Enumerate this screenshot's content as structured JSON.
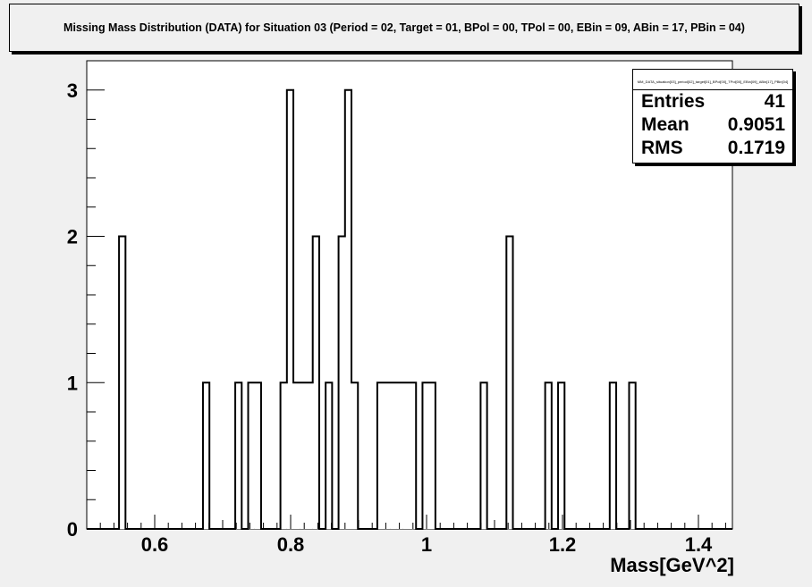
{
  "title": "Missing Mass Distribution (DATA) for Situation 03 (Period = 02, Target = 01, BPol = 00, TPol = 00, EBin = 09, ABin = 17, PBin = 04)",
  "stats": {
    "name": "MM_DATA_situation[03]_period[02]_target[01]_BPol[00]_TPol[00]_EBin[09]_ABin[17]_PBin[04]",
    "entries_label": "Entries",
    "entries": "41",
    "mean_label": "Mean",
    "mean": "0.9051",
    "rms_label": "RMS",
    "rms": "0.1719"
  },
  "chart_data": {
    "type": "bar",
    "histogram": true,
    "title": "Missing Mass Distribution (DATA) for Situation 03 (Period = 02, Target = 01, BPol = 00, TPol = 00, EBin = 09, ABin = 17, PBin = 04)",
    "xlabel": "Mass[GeV^2]",
    "ylabel": "",
    "xlim": [
      0.5,
      1.45
    ],
    "ylim": [
      0,
      3.2
    ],
    "bin_width": 0.0095,
    "x_ticks": [
      {
        "value": 0.6,
        "label": "0.6"
      },
      {
        "value": 0.8,
        "label": "0.8"
      },
      {
        "value": 1.0,
        "label": "1"
      },
      {
        "value": 1.2,
        "label": "1.2"
      },
      {
        "value": 1.4,
        "label": "1.4"
      }
    ],
    "y_ticks": [
      {
        "value": 0,
        "label": "0"
      },
      {
        "value": 1,
        "label": "1"
      },
      {
        "value": 2,
        "label": "2"
      },
      {
        "value": 3,
        "label": "3"
      }
    ],
    "grid": false,
    "legend": "top-right stats box",
    "bins": [
      {
        "x": 0.5475,
        "count": 2
      },
      {
        "x": 0.671,
        "count": 1
      },
      {
        "x": 0.7185,
        "count": 1
      },
      {
        "x": 0.7375,
        "count": 1
      },
      {
        "x": 0.747,
        "count": 1
      },
      {
        "x": 0.785,
        "count": 1
      },
      {
        "x": 0.7945,
        "count": 3
      },
      {
        "x": 0.804,
        "count": 1
      },
      {
        "x": 0.8135,
        "count": 1
      },
      {
        "x": 0.823,
        "count": 1
      },
      {
        "x": 0.8325,
        "count": 2
      },
      {
        "x": 0.8515,
        "count": 1
      },
      {
        "x": 0.8705,
        "count": 2
      },
      {
        "x": 0.88,
        "count": 3
      },
      {
        "x": 0.8895,
        "count": 1
      },
      {
        "x": 0.9275,
        "count": 1
      },
      {
        "x": 0.937,
        "count": 1
      },
      {
        "x": 0.9465,
        "count": 1
      },
      {
        "x": 0.956,
        "count": 1
      },
      {
        "x": 0.9655,
        "count": 1
      },
      {
        "x": 0.975,
        "count": 1
      },
      {
        "x": 0.994,
        "count": 1
      },
      {
        "x": 1.0035,
        "count": 1
      },
      {
        "x": 1.0795,
        "count": 1
      },
      {
        "x": 1.1175,
        "count": 2
      },
      {
        "x": 1.1745,
        "count": 1
      },
      {
        "x": 1.1935,
        "count": 1
      },
      {
        "x": 1.2695,
        "count": 1
      },
      {
        "x": 1.298,
        "count": 1
      }
    ]
  }
}
